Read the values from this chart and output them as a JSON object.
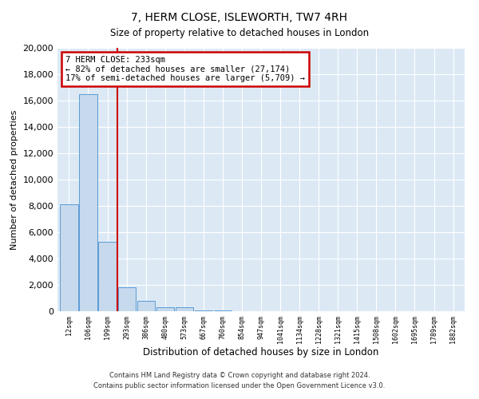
{
  "title": "7, HERM CLOSE, ISLEWORTH, TW7 4RH",
  "subtitle": "Size of property relative to detached houses in London",
  "xlabel": "Distribution of detached houses by size in London",
  "ylabel": "Number of detached properties",
  "bar_labels": [
    "12sqm",
    "106sqm",
    "199sqm",
    "293sqm",
    "386sqm",
    "480sqm",
    "573sqm",
    "667sqm",
    "760sqm",
    "854sqm",
    "947sqm",
    "1041sqm",
    "1134sqm",
    "1228sqm",
    "1321sqm",
    "1415sqm",
    "1508sqm",
    "1602sqm",
    "1695sqm",
    "1789sqm",
    "1882sqm"
  ],
  "bar_values": [
    8100,
    16500,
    5300,
    1800,
    800,
    300,
    300,
    60,
    40,
    0,
    0,
    0,
    0,
    0,
    0,
    0,
    0,
    0,
    0,
    0,
    0
  ],
  "bar_color": "#c6d9ed",
  "bar_edge_color": "#5b9bd5",
  "vline_color": "#cc0000",
  "vline_pos": 2.5,
  "annotation_title": "7 HERM CLOSE: 233sqm",
  "annotation_line1": "← 82% of detached houses are smaller (27,174)",
  "annotation_line2": "17% of semi-detached houses are larger (5,709) →",
  "annotation_box_edge": "#cc0000",
  "ylim": [
    0,
    20000
  ],
  "yticks": [
    0,
    2000,
    4000,
    6000,
    8000,
    10000,
    12000,
    14000,
    16000,
    18000,
    20000
  ],
  "footnote1": "Contains HM Land Registry data © Crown copyright and database right 2024.",
  "footnote2": "Contains public sector information licensed under the Open Government Licence v3.0.",
  "bg_color": "#ffffff",
  "plot_bg_color": "#dce9f5",
  "grid_color": "#ffffff"
}
